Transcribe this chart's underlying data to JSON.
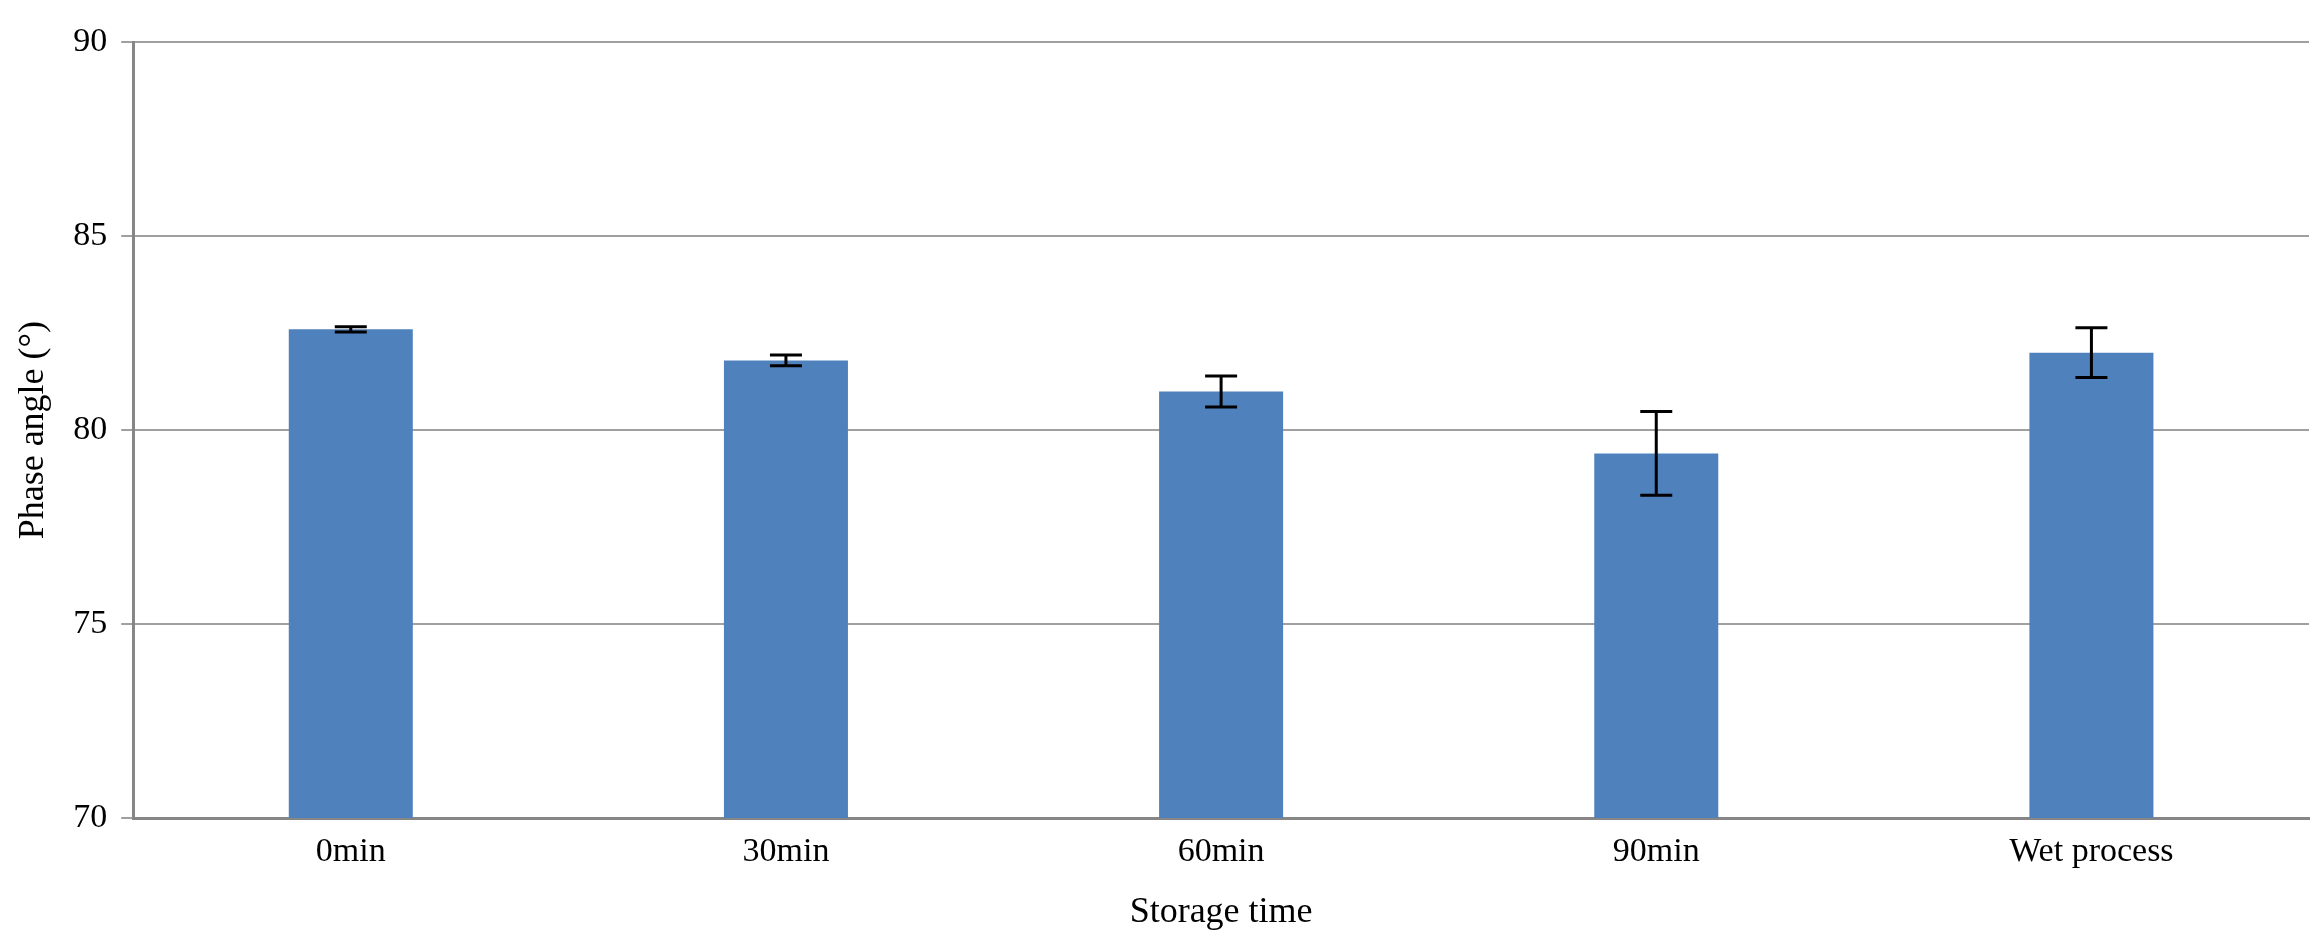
{
  "chart_data": {
    "type": "bar",
    "xlabel": "Storage time",
    "ylabel": "Phase angle (°)",
    "categories": [
      "0min",
      "30min",
      "60min",
      "90min",
      "Wet process"
    ],
    "values": [
      82.6,
      81.8,
      81.0,
      79.4,
      82.0
    ],
    "errors": [
      0.07,
      0.14,
      0.4,
      1.08,
      0.64
    ],
    "color": "#4f81bd",
    "ylim": [
      70,
      90
    ],
    "yticks": [
      70,
      75,
      80,
      85,
      90
    ],
    "grid": "y",
    "legend": false
  }
}
